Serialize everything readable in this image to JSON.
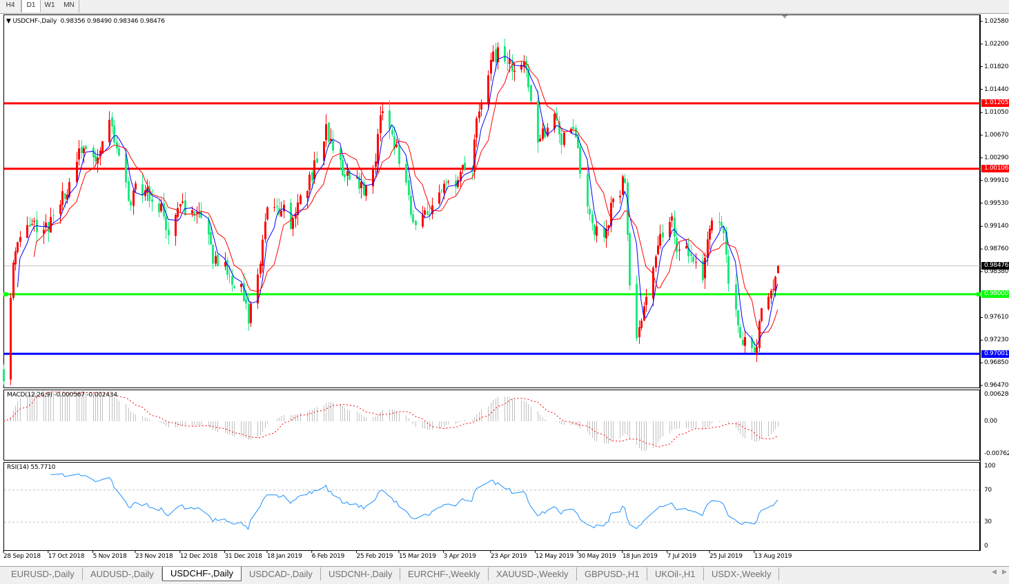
{
  "toolbar": {
    "timeframes": [
      "H4",
      "D1",
      "W1",
      "MN"
    ]
  },
  "chart_data": {
    "type": "candlestick",
    "symbol_title": "USDCHF-,Daily",
    "last_bar": {
      "open": 0.98356,
      "high": 0.9849,
      "low": 0.98346,
      "close": 0.98476
    },
    "last_bar_text": "0.98356 0.98490 0.98346 0.98476",
    "bull_color": "#ff0000",
    "bear_color": "#1ee87e",
    "ylim": [
      0.9647,
      1.0258
    ],
    "y_ticks": [
      "1.02580",
      "1.02200",
      "1.01820",
      "1.01440",
      "1.01050",
      "1.00670",
      "1.00290",
      "0.99910",
      "0.99530",
      "0.99140",
      "0.98760",
      "0.98380",
      "0.97610",
      "0.97230",
      "0.96850",
      "0.96470"
    ],
    "x_ticks": [
      {
        "date": "2018-09-28",
        "label": "28 Sep 2018"
      },
      {
        "date": "2018-10-17",
        "label": "17 Oct 2018"
      },
      {
        "date": "2018-11-05",
        "label": "5 Nov 2018"
      },
      {
        "date": "2018-11-23",
        "label": "23 Nov 2018"
      },
      {
        "date": "2018-12-12",
        "label": "12 Dec 2018"
      },
      {
        "date": "2018-12-31",
        "label": "31 Dec 2018"
      },
      {
        "date": "2019-01-18",
        "label": "18 Jan 2019"
      },
      {
        "date": "2019-02-06",
        "label": "6 Feb 2019"
      },
      {
        "date": "2019-02-25",
        "label": "25 Feb 2019"
      },
      {
        "date": "2019-03-15",
        "label": "15 Mar 2019"
      },
      {
        "date": "2019-04-03",
        "label": "3 Apr 2019"
      },
      {
        "date": "2019-04-23",
        "label": "23 Apr 2019"
      },
      {
        "date": "2019-05-12",
        "label": "12 May 2019"
      },
      {
        "date": "2019-05-30",
        "label": "30 May 2019"
      },
      {
        "date": "2019-06-18",
        "label": "18 Jun 2019"
      },
      {
        "date": "2019-07-07",
        "label": "7 Jul 2019"
      },
      {
        "date": "2019-07-25",
        "label": "25 Jul 2019"
      },
      {
        "date": "2019-08-13",
        "label": "13 Aug 2019"
      }
    ],
    "close_path": [
      [
        "2018-09-28",
        0.9669
      ],
      [
        "2018-10-02",
        0.9854
      ],
      [
        "2018-10-08",
        0.9924
      ],
      [
        "2018-10-17",
        0.9912
      ],
      [
        "2018-10-23",
        0.9958
      ],
      [
        "2018-11-01",
        1.0051
      ],
      [
        "2018-11-05",
        1.0016
      ],
      [
        "2018-11-12",
        1.0091
      ],
      [
        "2018-11-16",
        1.0039
      ],
      [
        "2018-11-21",
        0.9947
      ],
      [
        "2018-11-23",
        0.9976
      ],
      [
        "2018-11-30",
        0.997
      ],
      [
        "2018-12-07",
        0.9912
      ],
      [
        "2018-12-12",
        0.9947
      ],
      [
        "2018-12-21",
        0.9924
      ],
      [
        "2018-12-26",
        0.9866
      ],
      [
        "2018-12-31",
        0.9842
      ],
      [
        "2019-01-07",
        0.9808
      ],
      [
        "2019-01-10",
        0.9762
      ],
      [
        "2019-01-14",
        0.9819
      ],
      [
        "2019-01-18",
        0.9947
      ],
      [
        "2019-01-24",
        0.9947
      ],
      [
        "2019-01-28",
        0.9924
      ],
      [
        "2019-02-01",
        0.9958
      ],
      [
        "2019-02-06",
        1.0005
      ],
      [
        "2019-02-12",
        1.0074
      ],
      [
        "2019-02-18",
        1.0016
      ],
      [
        "2019-02-22",
        0.9999
      ],
      [
        "2019-02-28",
        0.9981
      ],
      [
        "2019-03-04",
        0.9999
      ],
      [
        "2019-03-07",
        1.0109
      ],
      [
        "2019-03-12",
        1.0074
      ],
      [
        "2019-03-15",
        1.0028
      ],
      [
        "2019-03-21",
        0.9924
      ],
      [
        "2019-03-27",
        0.9935
      ],
      [
        "2019-04-02",
        0.997
      ],
      [
        "2019-04-08",
        0.9993
      ],
      [
        "2019-04-15",
        1.0016
      ],
      [
        "2019-04-18",
        1.012
      ],
      [
        "2019-04-23",
        1.0196
      ],
      [
        "2019-04-26",
        1.0201
      ],
      [
        "2019-05-02",
        1.0184
      ],
      [
        "2019-05-07",
        1.019
      ],
      [
        "2019-05-10",
        1.012
      ],
      [
        "2019-05-13",
        1.0062
      ],
      [
        "2019-05-20",
        1.0097
      ],
      [
        "2019-05-23",
        1.0057
      ],
      [
        "2019-05-28",
        1.0074
      ],
      [
        "2019-05-31",
        1.0016
      ],
      [
        "2019-06-05",
        0.9912
      ],
      [
        "2019-06-10",
        0.99
      ],
      [
        "2019-06-14",
        0.9958
      ],
      [
        "2019-06-19",
        0.9993
      ],
      [
        "2019-06-21",
        0.9808
      ],
      [
        "2019-06-24",
        0.9738
      ],
      [
        "2019-06-28",
        0.9785
      ],
      [
        "2019-07-03",
        0.9877
      ],
      [
        "2019-07-08",
        0.9935
      ],
      [
        "2019-07-12",
        0.9866
      ],
      [
        "2019-07-17",
        0.9866
      ],
      [
        "2019-07-22",
        0.9831
      ],
      [
        "2019-07-26",
        0.9924
      ],
      [
        "2019-07-31",
        0.9912
      ],
      [
        "2019-08-02",
        0.9831
      ],
      [
        "2019-08-06",
        0.975
      ],
      [
        "2019-08-09",
        0.9715
      ],
      [
        "2019-08-13",
        0.9704
      ],
      [
        "2019-08-16",
        0.9762
      ],
      [
        "2019-08-21",
        0.9808
      ],
      [
        "2019-08-23",
        0.98476
      ]
    ],
    "moving_averages": [
      {
        "color": "#0000ff"
      },
      {
        "color": "#ff0000"
      }
    ],
    "levels": [
      {
        "price": "1.01205",
        "color": "#ff0000",
        "text_color": "#ffffff"
      },
      {
        "price": "1.00106",
        "color": "#ff0000",
        "text_color": "#ffffff"
      },
      {
        "price": "0.98000",
        "color": "#00ff00",
        "text_color": "#ffffff"
      },
      {
        "price": "0.97001",
        "color": "#0000ff",
        "text_color": "#ffffff"
      }
    ],
    "current_price": {
      "price": "0.98476",
      "color": "#000000"
    },
    "macd": {
      "title": "MACD(12,26,9) -0.000567 -0.002434",
      "y_ticks": [
        "0.006286",
        "0.00",
        "-0.00762"
      ],
      "histogram_color": "#c0c0c0",
      "signal_color": "#ff0000"
    },
    "rsi": {
      "title": "RSI(14) 55.7710",
      "y_ticks": [
        "100",
        "70",
        "30",
        "0"
      ],
      "levels": [
        70,
        30
      ],
      "color": "#1e90ff"
    }
  },
  "bottom_tabs": {
    "items": [
      "EURUSD-,Daily",
      "AUDUSD-,Daily",
      "USDCHF-,Daily",
      "USDCAD-,Daily",
      "USDCNH-,Daily",
      "EURCHF-,Weekly",
      "XAUUSD-,Weekly",
      "GBPUSD-,H1",
      "UKOil-,H1",
      "USDX-,Weekly"
    ],
    "active": "USDCHF-,Daily",
    "scroll_left": "◀",
    "scroll_right": "▶"
  }
}
